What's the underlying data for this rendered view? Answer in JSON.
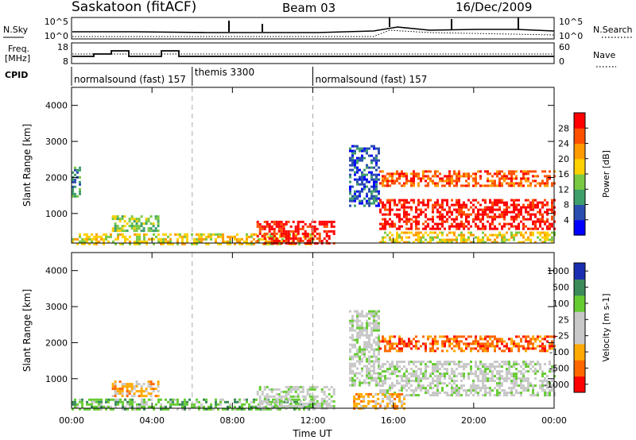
{
  "header": {
    "station": "Saskatoon (fitACF)",
    "beam": "Beam 03",
    "date": "16/Dec/2009"
  },
  "summary": {
    "nsky_label": "N.Sky",
    "nsky_ticks": [
      "10^5",
      "10^0"
    ],
    "nsearch_label": "N.Search",
    "nsearch_ticks": [
      "10^5",
      "10^0"
    ],
    "freq_label_line1": "Freq.",
    "freq_label_line2": "[MHz]",
    "freq_ticks": [
      "18",
      "8"
    ],
    "nave_label": "Nave",
    "nave_ticks": [
      "60",
      "0"
    ],
    "cpid_label": "CPID"
  },
  "cpid_segments": [
    {
      "label": "normalsound (fast) 157",
      "start_hour": 0
    },
    {
      "label": "themis 3300",
      "start_hour": 6
    },
    {
      "label": "normalsound (fast) 157",
      "start_hour": 12
    }
  ],
  "time_axis": {
    "label": "Time UT",
    "ticks": [
      "00:00",
      "04:00",
      "08:00",
      "12:00",
      "16:00",
      "20:00",
      "00:00"
    ]
  },
  "chart_data": [
    {
      "type": "heatmap",
      "title": "",
      "xlabel": "Time UT",
      "ylabel": "Slant Range [km]",
      "xlim": [
        0,
        24
      ],
      "ylim": [
        180,
        4500
      ],
      "x_tick_labels": [
        "00:00",
        "04:00",
        "08:00",
        "12:00",
        "16:00",
        "20:00",
        "00:00"
      ],
      "y_tick_labels": [
        "1000",
        "2000",
        "3000",
        "4000"
      ],
      "colorbar": {
        "label": "Power [dB]",
        "ticks": [
          "4",
          "8",
          "12",
          "16",
          "20",
          "24",
          "28"
        ],
        "colors": [
          "#0000ff",
          "#2a4db0",
          "#3f9f6a",
          "#7ac943",
          "#ffd000",
          "#ff9a00",
          "#ff5000",
          "#ff0000"
        ]
      },
      "echo_regions": [
        {
          "t0": 0.0,
          "t1": 0.4,
          "r0": 1500,
          "r1": 2300,
          "level": 2
        },
        {
          "t0": 2.0,
          "t1": 4.3,
          "r0": 550,
          "r1": 950,
          "level": 3
        },
        {
          "t0": 0.0,
          "t1": 12.0,
          "r0": 180,
          "r1": 450,
          "level": 4
        },
        {
          "t0": 9.2,
          "t1": 13.0,
          "r0": 180,
          "r1": 800,
          "level": 7
        },
        {
          "t0": 13.8,
          "t1": 15.3,
          "r0": 1200,
          "r1": 2900,
          "level": 1
        },
        {
          "t0": 15.3,
          "t1": 24.0,
          "r0": 1800,
          "r1": 2200,
          "level": 6
        },
        {
          "t0": 15.3,
          "t1": 24.0,
          "r0": 550,
          "r1": 1400,
          "level": 7
        },
        {
          "t0": 15.3,
          "t1": 24.0,
          "r0": 180,
          "r1": 500,
          "level": 4
        }
      ]
    },
    {
      "type": "heatmap",
      "title": "",
      "xlabel": "Time UT",
      "ylabel": "Slant Range [km]",
      "xlim": [
        0,
        24
      ],
      "ylim": [
        180,
        4500
      ],
      "x_tick_labels": [
        "00:00",
        "04:00",
        "08:00",
        "12:00",
        "16:00",
        "20:00",
        "00:00"
      ],
      "y_tick_labels": [
        "1000",
        "2000",
        "3000",
        "4000"
      ],
      "colorbar": {
        "label": "Velocity [m s-1]",
        "ticks": [
          "1000",
          "500",
          "100",
          "25",
          "-25",
          "-100",
          "-500",
          "-1000"
        ],
        "colors": [
          "#1a2fb0",
          "#3a8a5a",
          "#66cc33",
          "#c8c8c8",
          "#c8c8c8",
          "#ffaa00",
          "#ff6600",
          "#ff0000"
        ]
      },
      "echo_regions": [
        {
          "t0": 2.0,
          "t1": 4.3,
          "r0": 550,
          "r1": 950,
          "level": 5
        },
        {
          "t0": 0.0,
          "t1": 12.0,
          "r0": 180,
          "r1": 450,
          "level": 2
        },
        {
          "t0": 9.2,
          "t1": 13.0,
          "r0": 180,
          "r1": 800,
          "level": 3
        },
        {
          "t0": 13.8,
          "t1": 15.3,
          "r0": 800,
          "r1": 2900,
          "level": 3
        },
        {
          "t0": 15.3,
          "t1": 24.0,
          "r0": 1800,
          "r1": 2200,
          "level": 6
        },
        {
          "t0": 15.3,
          "t1": 24.0,
          "r0": 550,
          "r1": 1500,
          "level": 3
        },
        {
          "t0": 14.0,
          "t1": 16.5,
          "r0": 180,
          "r1": 600,
          "level": 5
        }
      ]
    }
  ]
}
